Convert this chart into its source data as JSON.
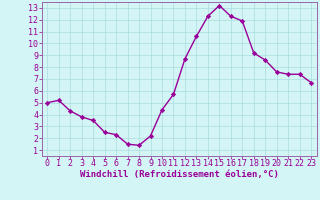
{
  "x": [
    0,
    1,
    2,
    3,
    4,
    5,
    6,
    7,
    8,
    9,
    10,
    11,
    12,
    13,
    14,
    15,
    16,
    17,
    18,
    19,
    20,
    21,
    22,
    23
  ],
  "y": [
    5.0,
    5.2,
    4.3,
    3.8,
    3.5,
    2.5,
    2.3,
    1.5,
    1.4,
    2.2,
    4.4,
    5.7,
    8.7,
    10.6,
    12.3,
    13.2,
    12.3,
    11.9,
    9.2,
    8.6,
    7.6,
    7.4,
    7.4,
    6.7
  ],
  "line_color": "#990099",
  "marker": "D",
  "marker_size": 2.2,
  "bg_color": "#d4f5f5",
  "grid_color": "#aadddd",
  "xlabel": "Windchill (Refroidissement éolien,°C)",
  "xlim": [
    -0.5,
    23.5
  ],
  "ylim": [
    0.5,
    13.5
  ],
  "yticks": [
    1,
    2,
    3,
    4,
    5,
    6,
    7,
    8,
    9,
    10,
    11,
    12,
    13
  ],
  "xticks": [
    0,
    1,
    2,
    3,
    4,
    5,
    6,
    7,
    8,
    9,
    10,
    11,
    12,
    13,
    14,
    15,
    16,
    17,
    18,
    19,
    20,
    21,
    22,
    23
  ],
  "spine_color": "#9966aa",
  "xlabel_fontsize": 6.5,
  "tick_fontsize": 6.0,
  "line_width": 1.0
}
